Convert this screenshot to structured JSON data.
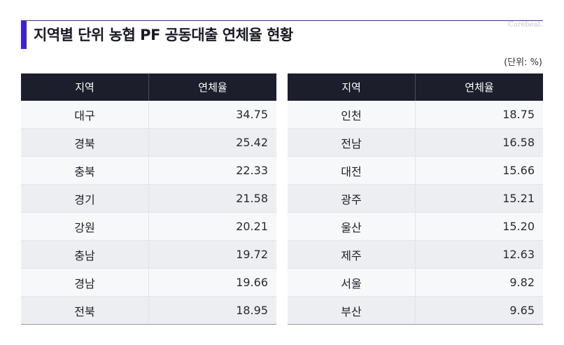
{
  "header": {
    "title": "지역별 단위 농협 PF 공동대출 연체율 현황",
    "brand": "Corebeat.",
    "unit": "(단위: %)"
  },
  "colors": {
    "accent": "#3d1fd9",
    "header_bg": "#1c1e2b",
    "row_odd": "#f7f8fa",
    "row_even": "#edeef2"
  },
  "chart_data": {
    "type": "table",
    "title": "지역별 단위 농협 PF 공동대출 연체율 현황",
    "unit": "(단위: %)",
    "columns": [
      "지역",
      "연체율"
    ],
    "tables": [
      {
        "rows": [
          {
            "region": "대구",
            "rate": "34.75"
          },
          {
            "region": "경북",
            "rate": "25.42"
          },
          {
            "region": "충북",
            "rate": "22.33"
          },
          {
            "region": "경기",
            "rate": "21.58"
          },
          {
            "region": "강원",
            "rate": "20.21"
          },
          {
            "region": "충남",
            "rate": "19.72"
          },
          {
            "region": "경남",
            "rate": "19.66"
          },
          {
            "region": "전북",
            "rate": "18.95"
          }
        ]
      },
      {
        "rows": [
          {
            "region": "인천",
            "rate": "18.75"
          },
          {
            "region": "전남",
            "rate": "16.58"
          },
          {
            "region": "대전",
            "rate": "15.66"
          },
          {
            "region": "광주",
            "rate": "15.21"
          },
          {
            "region": "울산",
            "rate": "15.20"
          },
          {
            "region": "제주",
            "rate": "12.63"
          },
          {
            "region": "서울",
            "rate": "9.82"
          },
          {
            "region": "부산",
            "rate": "9.65"
          }
        ]
      }
    ]
  }
}
